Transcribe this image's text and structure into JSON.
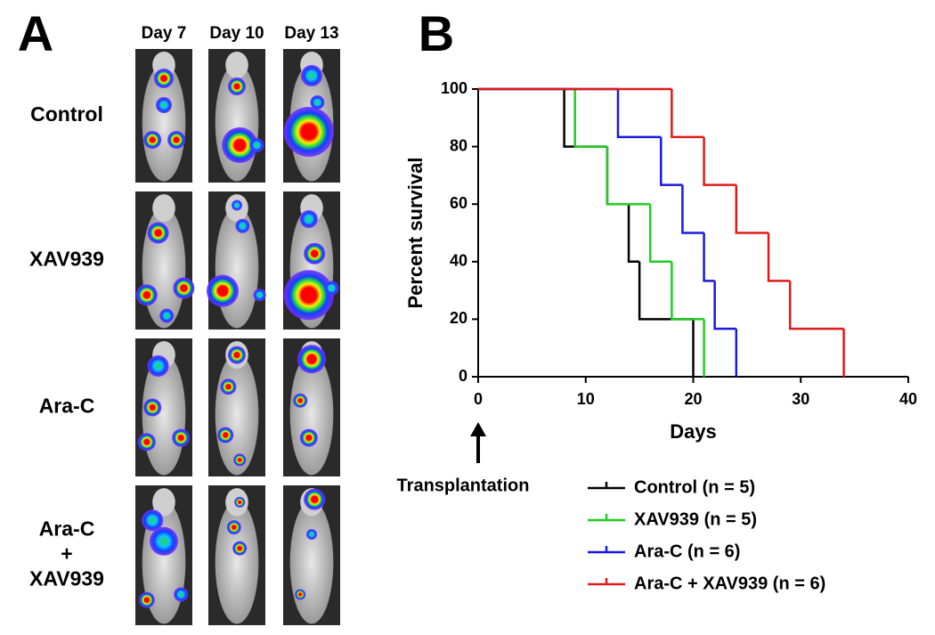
{
  "panel_a": {
    "label": "A",
    "columns": [
      "Day 7",
      "Day 10",
      "Day 13"
    ],
    "rows": [
      [
        "Control"
      ],
      [
        "XAV939"
      ],
      [
        "Ara-C"
      ],
      [
        "Ara-C",
        "+",
        "XAV939"
      ]
    ]
  },
  "chart_data": {
    "type": "line",
    "step": true,
    "panel_label": "B",
    "x_label": "Days",
    "y_label": "Percent survival",
    "annotation": "Transplantation",
    "xlim": [
      0,
      40
    ],
    "ylim": [
      0,
      100
    ],
    "xticks": [
      0,
      10,
      20,
      30,
      40
    ],
    "yticks": [
      0,
      20,
      40,
      60,
      80,
      100
    ],
    "series": [
      {
        "name": "Control (n = 5)",
        "color": "#000000",
        "x": [
          0,
          8,
          12,
          14,
          15,
          20
        ],
        "values": [
          100,
          80,
          60,
          40,
          20,
          0
        ]
      },
      {
        "name": "XAV939 (n = 5)",
        "color": "#22cc22",
        "x": [
          0,
          9,
          12,
          16,
          18,
          21
        ],
        "values": [
          100,
          80,
          60,
          40,
          20,
          0
        ]
      },
      {
        "name": "Ara-C (n = 6)",
        "color": "#1a1adc",
        "x": [
          0,
          13,
          17,
          19,
          21,
          22,
          24
        ],
        "values": [
          100,
          83.33,
          66.67,
          50,
          33.33,
          16.67,
          0
        ]
      },
      {
        "name": "Ara-C + XAV939 (n = 6)",
        "color": "#e01a1a",
        "x": [
          0,
          18,
          21,
          24,
          27,
          29,
          34
        ],
        "values": [
          100,
          83.33,
          66.67,
          50,
          33.33,
          16.67,
          0
        ]
      }
    ]
  }
}
